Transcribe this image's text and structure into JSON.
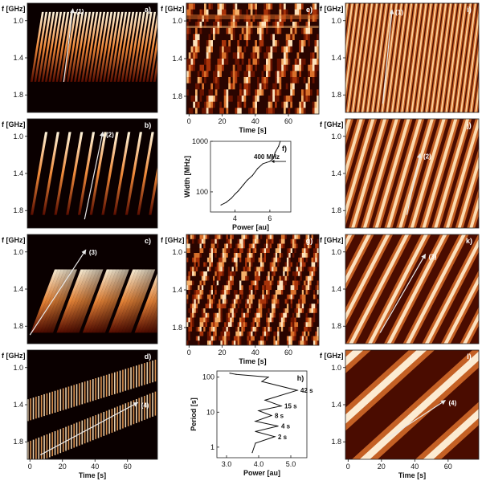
{
  "figure": {
    "freq_label": "f [GHz]",
    "freq_ticks": [
      "1.0",
      "1.4",
      "1.8"
    ],
    "time_label": "Time [s]",
    "time_ticks": [
      "0",
      "20",
      "40",
      "60"
    ],
    "colors": {
      "dark": "#1a0000",
      "mid": "#c2410c",
      "bright": "#fff3d6"
    }
  },
  "panels": [
    {
      "letter": "a)",
      "arrow_label": "(1)",
      "kind": "short_bursts"
    },
    {
      "letter": "b)",
      "arrow_label": "(2)",
      "kind": "bursts"
    },
    {
      "letter": "c)",
      "arrow_label": "(3)",
      "kind": "wide_bursts"
    },
    {
      "letter": "d)",
      "arrow_label": "(4)",
      "kind": "bands"
    },
    {
      "letter": "e)",
      "kind": "noisy"
    },
    {
      "letter": "g)",
      "kind": "noisy_dense"
    },
    {
      "letter": "i)",
      "arrow_label": "(1)",
      "kind": "filtered_fine"
    },
    {
      "letter": "j)",
      "arrow_label": "(2)",
      "kind": "filtered_mid"
    },
    {
      "letter": "k)",
      "arrow_label": "(3)",
      "kind": "filtered_coarse"
    },
    {
      "letter": "l)",
      "arrow_label": "(4)",
      "kind": "filtered_smooth"
    }
  ],
  "chart_data": [
    {
      "type": "line",
      "panel": "f)",
      "xlabel": "Power [au]",
      "ylabel": "Width [MHz]",
      "x_ticks": [
        "4",
        "6"
      ],
      "y_ticks": [
        "100",
        "1000"
      ],
      "y_scale": "log",
      "xlim": [
        2.6,
        7.2
      ],
      "ylim": [
        40,
        1000
      ],
      "annotation": "400 MHz",
      "x": [
        3.2,
        3.5,
        3.8,
        4.0,
        4.2,
        4.5,
        4.7,
        5.0,
        5.3,
        5.6,
        5.8,
        6.0,
        6.2,
        6.3,
        6.5,
        6.6
      ],
      "y": [
        55,
        62,
        75,
        90,
        105,
        140,
        170,
        210,
        290,
        360,
        380,
        400,
        460,
        600,
        800,
        1000
      ]
    },
    {
      "type": "line",
      "panel": "h)",
      "xlabel": "Power [au]",
      "ylabel": "Period [s]",
      "x_ticks": [
        "3.0",
        "4.0",
        "5.0"
      ],
      "y_ticks": [
        "1",
        "10",
        "100"
      ],
      "y_scale": "log",
      "xlim": [
        2.7,
        5.5
      ],
      "ylim": [
        0.5,
        150
      ],
      "peaks": [
        {
          "label": "2 s",
          "period": 2,
          "power": 4.5
        },
        {
          "label": "4 s",
          "period": 4,
          "power": 4.6
        },
        {
          "label": "8 s",
          "period": 8,
          "power": 4.4
        },
        {
          "label": "15 s",
          "period": 15,
          "power": 4.7
        },
        {
          "label": "42 s",
          "period": 42,
          "power": 5.2
        }
      ],
      "x": [
        3.8,
        3.9,
        4.5,
        3.9,
        4.6,
        3.9,
        4.4,
        4.0,
        4.7,
        4.2,
        5.2,
        4.1,
        4.3,
        3.3,
        3.1
      ],
      "y": [
        0.7,
        1.3,
        2,
        2.8,
        4,
        5.5,
        8,
        11,
        15,
        22,
        42,
        75,
        100,
        120,
        130
      ]
    }
  ]
}
